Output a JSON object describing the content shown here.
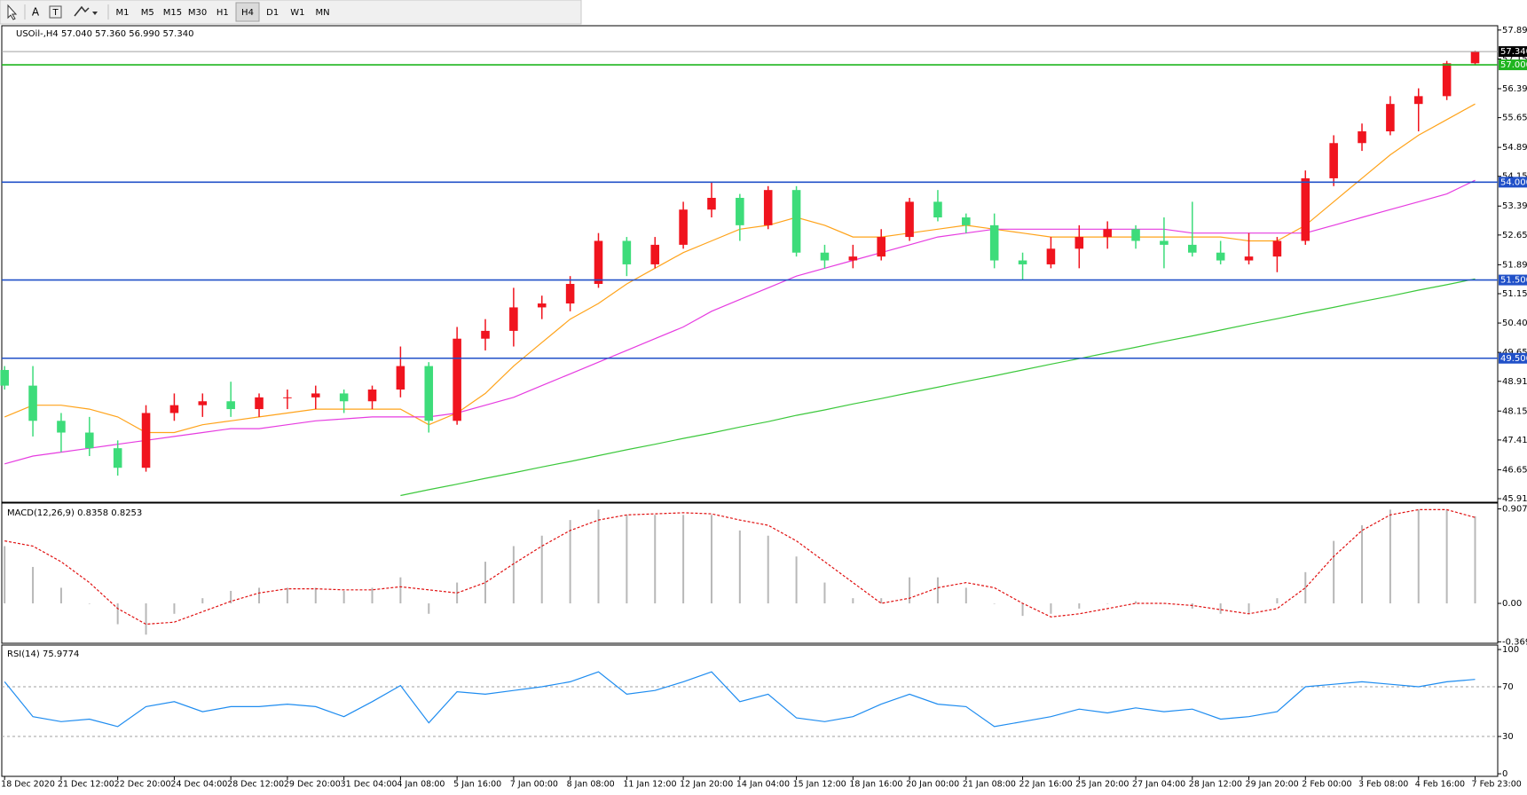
{
  "toolbar": {
    "tools": [
      "A",
      "T"
    ],
    "periods": [
      {
        "label": "M1"
      },
      {
        "label": "M5"
      },
      {
        "label": "M15"
      },
      {
        "label": "M30"
      },
      {
        "label": "H1"
      },
      {
        "label": "H4",
        "active": true
      },
      {
        "label": "D1"
      },
      {
        "label": "W1"
      },
      {
        "label": "MN"
      }
    ]
  },
  "chart_data": [
    {
      "type": "candlestick",
      "title": "USOil-,H4 57.040 57.360 56.990 57.340",
      "x": [
        0,
        1,
        2,
        3,
        4,
        5,
        6,
        7,
        8,
        9,
        10,
        11,
        12,
        13,
        14,
        15,
        16,
        17,
        18,
        19,
        20,
        21,
        22,
        23,
        24,
        25,
        26,
        27,
        28,
        29,
        30,
        31,
        32,
        33,
        34,
        35,
        36,
        37,
        38,
        39,
        40,
        41,
        42,
        43,
        44,
        45,
        46,
        47,
        48,
        49,
        50,
        51,
        52
      ],
      "open": [
        49.2,
        48.8,
        47.9,
        47.6,
        47.2,
        46.7,
        48.1,
        48.3,
        48.4,
        48.2,
        48.5,
        48.5,
        48.6,
        48.4,
        48.7,
        49.3,
        47.9,
        50.0,
        50.2,
        50.8,
        50.9,
        51.4,
        52.5,
        51.9,
        52.4,
        53.3,
        53.6,
        52.9,
        53.8,
        52.2,
        52.0,
        52.1,
        52.6,
        53.5,
        53.1,
        52.9,
        52.0,
        51.9,
        52.3,
        52.6,
        52.8,
        52.5,
        52.4,
        52.2,
        52.0,
        52.1,
        52.5,
        54.1,
        55.0,
        55.3,
        56.0,
        56.2,
        57.04
      ],
      "high": [
        49.3,
        49.3,
        48.1,
        48.0,
        47.4,
        48.3,
        48.6,
        48.6,
        48.9,
        48.6,
        48.7,
        48.8,
        48.7,
        48.8,
        49.8,
        49.4,
        50.3,
        50.5,
        51.3,
        51.1,
        51.6,
        52.7,
        52.6,
        52.6,
        53.5,
        54.0,
        53.7,
        53.9,
        53.9,
        52.4,
        52.4,
        52.8,
        53.6,
        53.8,
        53.2,
        53.2,
        52.2,
        52.6,
        52.9,
        53.0,
        52.9,
        53.1,
        53.5,
        52.5,
        52.7,
        52.6,
        54.3,
        55.2,
        55.5,
        56.2,
        56.4,
        57.1,
        57.36
      ],
      "low": [
        48.7,
        47.5,
        47.1,
        47.0,
        46.5,
        46.6,
        47.9,
        48.0,
        48.0,
        48.0,
        48.2,
        48.2,
        48.1,
        48.2,
        48.5,
        47.6,
        47.8,
        49.7,
        49.8,
        50.5,
        50.7,
        51.3,
        51.6,
        51.8,
        52.3,
        53.1,
        52.5,
        52.8,
        52.1,
        51.8,
        51.8,
        52.0,
        52.5,
        53.0,
        52.7,
        51.8,
        51.5,
        51.8,
        51.8,
        52.3,
        52.3,
        51.8,
        52.1,
        51.9,
        51.9,
        51.7,
        52.4,
        53.9,
        54.8,
        55.2,
        55.3,
        56.1,
        56.99
      ],
      "close": [
        48.8,
        47.9,
        47.6,
        47.2,
        46.7,
        48.1,
        48.3,
        48.4,
        48.2,
        48.5,
        48.5,
        48.6,
        48.4,
        48.7,
        49.3,
        47.9,
        50.0,
        50.2,
        50.8,
        50.9,
        51.4,
        52.5,
        51.9,
        52.4,
        53.3,
        53.6,
        52.9,
        53.8,
        52.2,
        52.0,
        52.1,
        52.6,
        53.5,
        53.1,
        52.9,
        52.0,
        51.9,
        52.3,
        52.6,
        52.8,
        52.5,
        52.4,
        52.2,
        52.0,
        52.1,
        52.5,
        54.1,
        55.0,
        55.3,
        56.0,
        56.2,
        57.04,
        57.34
      ],
      "up_color": "#f0141e",
      "down_color": "#3ddc7a",
      "lines": [
        {
          "color": "#ffa31a",
          "values": [
            48.0,
            48.3,
            48.3,
            48.2,
            48.0,
            47.6,
            47.6,
            47.8,
            47.9,
            48.0,
            48.1,
            48.2,
            48.2,
            48.2,
            48.2,
            47.8,
            48.1,
            48.6,
            49.3,
            49.9,
            50.5,
            50.9,
            51.4,
            51.8,
            52.2,
            52.5,
            52.8,
            52.9,
            53.1,
            52.9,
            52.6,
            52.6,
            52.7,
            52.8,
            52.9,
            52.8,
            52.7,
            52.6,
            52.6,
            52.6,
            52.6,
            52.6,
            52.6,
            52.6,
            52.5,
            52.5,
            52.9,
            53.5,
            54.1,
            54.7,
            55.2,
            55.6,
            56.0
          ]
        },
        {
          "color": "#e63ce0",
          "values": [
            46.8,
            47.0,
            47.1,
            47.2,
            47.3,
            47.4,
            47.5,
            47.6,
            47.7,
            47.7,
            47.8,
            47.9,
            47.95,
            48.0,
            48.0,
            48.0,
            48.1,
            48.3,
            48.5,
            48.8,
            49.1,
            49.4,
            49.7,
            50.0,
            50.3,
            50.7,
            51.0,
            51.3,
            51.6,
            51.8,
            52.0,
            52.2,
            52.4,
            52.6,
            52.7,
            52.8,
            52.8,
            52.8,
            52.8,
            52.8,
            52.8,
            52.8,
            52.7,
            52.7,
            52.7,
            52.7,
            52.7,
            52.9,
            53.1,
            53.3,
            53.5,
            53.7,
            54.05
          ]
        },
        {
          "color": "#3cc83c",
          "values": [
            null,
            null,
            null,
            null,
            null,
            null,
            null,
            null,
            null,
            null,
            null,
            null,
            null,
            null,
            45.99,
            46.14,
            46.28,
            46.43,
            46.57,
            46.72,
            46.86,
            47.01,
            47.16,
            47.3,
            47.45,
            47.59,
            47.74,
            47.88,
            48.04,
            48.18,
            48.33,
            48.47,
            48.62,
            48.76,
            48.91,
            49.05,
            49.2,
            49.35,
            49.49,
            49.64,
            49.78,
            49.93,
            50.07,
            50.22,
            50.37,
            50.51,
            50.66,
            50.8,
            50.95,
            51.09,
            51.24,
            51.38,
            51.53
          ]
        }
      ],
      "levels": [
        {
          "value": 57.0,
          "label": "57.000",
          "color": "#1fb51f"
        },
        {
          "value": 54.0,
          "label": "54.000",
          "color": "#2050c8"
        },
        {
          "value": 51.5,
          "label": "51.500",
          "color": "#2050c8"
        },
        {
          "value": 49.5,
          "label": "49.500",
          "color": "#2050c8"
        }
      ],
      "current_price": {
        "value": 57.34,
        "label": "57.340"
      },
      "xlim": [
        -0.1,
        52.8
      ],
      "ylim": [
        45.82,
        58.0
      ],
      "yticks": [
        {
          "value": 57.89,
          "label": "57.890"
        },
        {
          "value": 57.15,
          "label": "57.150"
        },
        {
          "value": 56.39,
          "label": "56.390"
        },
        {
          "value": 55.65,
          "label": "55.650"
        },
        {
          "value": 54.89,
          "label": "54.890"
        },
        {
          "value": 54.15,
          "label": "54.150"
        },
        {
          "value": 53.39,
          "label": "53.390"
        },
        {
          "value": 52.65,
          "label": "52.650"
        },
        {
          "value": 51.89,
          "label": "51.890"
        },
        {
          "value": 51.15,
          "label": "51.150"
        },
        {
          "value": 50.4,
          "label": "50.400"
        },
        {
          "value": 49.65,
          "label": "49.650"
        },
        {
          "value": 48.91,
          "label": "48.910"
        },
        {
          "value": 48.15,
          "label": "48.150"
        },
        {
          "value": 47.41,
          "label": "47.410"
        },
        {
          "value": 46.65,
          "label": "46.650"
        },
        {
          "value": 45.91,
          "label": "45.910"
        }
      ]
    },
    {
      "type": "macd",
      "title": "MACD(12,26,9) 0.8358 0.8253",
      "x": [
        0,
        1,
        2,
        3,
        4,
        5,
        6,
        7,
        8,
        9,
        10,
        11,
        12,
        13,
        14,
        15,
        16,
        17,
        18,
        19,
        20,
        21,
        22,
        23,
        24,
        25,
        26,
        27,
        28,
        29,
        30,
        31,
        32,
        33,
        34,
        35,
        36,
        37,
        38,
        39,
        40,
        41,
        42,
        43,
        44,
        45,
        46,
        47,
        48,
        49,
        50,
        51,
        52
      ],
      "series": [
        {
          "type": "bar",
          "color": "#b8b8b8",
          "values": [
            0.55,
            0.35,
            0.15,
            0.0,
            -0.2,
            -0.3,
            -0.1,
            0.05,
            0.12,
            0.15,
            0.15,
            0.15,
            0.12,
            0.15,
            0.25,
            -0.1,
            0.2,
            0.4,
            0.55,
            0.65,
            0.8,
            0.9,
            0.85,
            0.85,
            0.85,
            0.85,
            0.7,
            0.65,
            0.45,
            0.2,
            0.05,
            0.05,
            0.25,
            0.25,
            0.15,
            0.0,
            -0.12,
            -0.1,
            -0.05,
            0.0,
            0.02,
            0.0,
            -0.05,
            -0.1,
            -0.1,
            0.05,
            0.3,
            0.6,
            0.75,
            0.9,
            0.9,
            0.9,
            0.8358
          ]
        },
        {
          "type": "line",
          "color": "#e01010",
          "dashed": true,
          "values": [
            0.6,
            0.55,
            0.4,
            0.2,
            -0.05,
            -0.2,
            -0.18,
            -0.08,
            0.02,
            0.1,
            0.14,
            0.14,
            0.13,
            0.13,
            0.16,
            0.13,
            0.1,
            0.2,
            0.38,
            0.55,
            0.7,
            0.8,
            0.85,
            0.86,
            0.87,
            0.86,
            0.8,
            0.75,
            0.6,
            0.4,
            0.2,
            0.0,
            0.05,
            0.15,
            0.2,
            0.15,
            0.0,
            -0.13,
            -0.1,
            -0.05,
            0.0,
            0.0,
            -0.02,
            -0.06,
            -0.1,
            -0.05,
            0.15,
            0.45,
            0.7,
            0.85,
            0.9,
            0.9,
            0.8253
          ]
        }
      ],
      "xlim": [
        -0.1,
        52.8
      ],
      "ylim": [
        -0.383,
        0.963
      ],
      "yticks": [
        0.9072,
        {
          "value": 0,
          "label": "0.00"
        },
        -0.369
      ]
    },
    {
      "type": "line",
      "title": "RSI(14) 75.9774",
      "x": [
        0,
        1,
        2,
        3,
        4,
        5,
        6,
        7,
        8,
        9,
        10,
        11,
        12,
        13,
        14,
        15,
        16,
        17,
        18,
        19,
        20,
        21,
        22,
        23,
        24,
        25,
        26,
        27,
        28,
        29,
        30,
        31,
        32,
        33,
        34,
        35,
        36,
        37,
        38,
        39,
        40,
        41,
        42,
        43,
        44,
        45,
        46,
        47,
        48,
        49,
        50,
        51,
        52
      ],
      "values": [
        74,
        46,
        42,
        44,
        38,
        54,
        58,
        50,
        54,
        54,
        56,
        54,
        46,
        58,
        71,
        41,
        66,
        64,
        67,
        70,
        74,
        82,
        64,
        67,
        74,
        82,
        58,
        64,
        45,
        42,
        46,
        56,
        64,
        56,
        54,
        38,
        42,
        46,
        52,
        49,
        53,
        50,
        52,
        44,
        46,
        50,
        70,
        72,
        74,
        72,
        70,
        74,
        75.9774
      ],
      "color": "#1e8cf0",
      "levels": [
        70,
        30
      ],
      "xlim": [
        -0.1,
        52.8
      ],
      "ylim": [
        -2.1,
        103.6
      ],
      "yticks": [
        100,
        70,
        30,
        0
      ],
      "xticks": [
        {
          "value": 0,
          "label": "18 Dec 2020"
        },
        {
          "value": 2,
          "label": "21 Dec 12:00"
        },
        {
          "value": 4,
          "label": "22 Dec 20:00"
        },
        {
          "value": 6,
          "label": "24 Dec 04:00"
        },
        {
          "value": 8,
          "label": "28 Dec 12:00"
        },
        {
          "value": 10,
          "label": "29 Dec 20:00"
        },
        {
          "value": 12,
          "label": "31 Dec 04:00"
        },
        {
          "value": 14,
          "label": "4 Jan 08:00"
        },
        {
          "value": 16,
          "label": "5 Jan 16:00"
        },
        {
          "value": 18,
          "label": "7 Jan 00:00"
        },
        {
          "value": 20,
          "label": "8 Jan 08:00"
        },
        {
          "value": 22,
          "label": "11 Jan 12:00"
        },
        {
          "value": 24,
          "label": "12 Jan 20:00"
        },
        {
          "value": 26,
          "label": "14 Jan 04:00"
        },
        {
          "value": 28,
          "label": "15 Jan 12:00"
        },
        {
          "value": 30,
          "label": "18 Jan 16:00"
        },
        {
          "value": 32,
          "label": "20 Jan 00:00"
        },
        {
          "value": 34,
          "label": "21 Jan 08:00"
        },
        {
          "value": 36,
          "label": "22 Jan 16:00"
        },
        {
          "value": 38,
          "label": "25 Jan 20:00"
        },
        {
          "value": 40,
          "label": "27 Jan 04:00"
        },
        {
          "value": 42,
          "label": "28 Jan 12:00"
        },
        {
          "value": 44,
          "label": "29 Jan 20:00"
        },
        {
          "value": 46,
          "label": "2 Feb 00:00"
        },
        {
          "value": 48,
          "label": "3 Feb 08:00"
        },
        {
          "value": 50,
          "label": "4 Feb 16:00"
        },
        {
          "value": 52,
          "label": "7 Feb 23:00"
        }
      ]
    }
  ]
}
